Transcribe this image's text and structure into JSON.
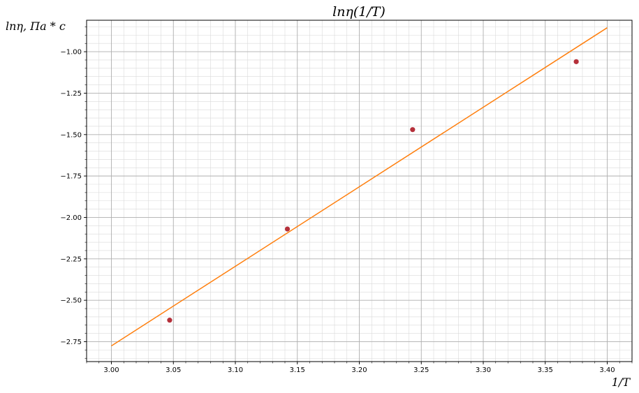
{
  "chart_data": {
    "type": "scatter",
    "title": "lnη(1/T)",
    "xlabel": "1/T",
    "ylabel": "lnη, Πa * c",
    "xlim": [
      2.98,
      3.42
    ],
    "ylim": [
      -2.87,
      -0.81
    ],
    "x_ticks": [
      3.0,
      3.05,
      3.1,
      3.15,
      3.2,
      3.25,
      3.3,
      3.35,
      3.4
    ],
    "x_tick_labels": [
      "3.00",
      "3.05",
      "3.10",
      "3.15",
      "3.20",
      "3.25",
      "3.30",
      "3.35",
      "3.40"
    ],
    "y_ticks": [
      -2.75,
      -2.5,
      -2.25,
      -2.0,
      -1.75,
      -1.5,
      -1.25,
      -1.0
    ],
    "y_tick_labels": [
      "−2.75",
      "−2.50",
      "−2.25",
      "−2.00",
      "−1.75",
      "−1.50",
      "−1.25",
      "−1.00"
    ],
    "grid": true,
    "minor_grid": true,
    "series": [
      {
        "kind": "scatter",
        "x": [
          3.047,
          3.142,
          3.243,
          3.375
        ],
        "y": [
          -2.62,
          -2.07,
          -1.47,
          -1.06
        ],
        "color": "#b5303a"
      },
      {
        "kind": "line",
        "x": [
          3.0,
          3.4
        ],
        "y": [
          -2.775,
          -0.855
        ],
        "color": "#ff7f0e"
      }
    ]
  }
}
